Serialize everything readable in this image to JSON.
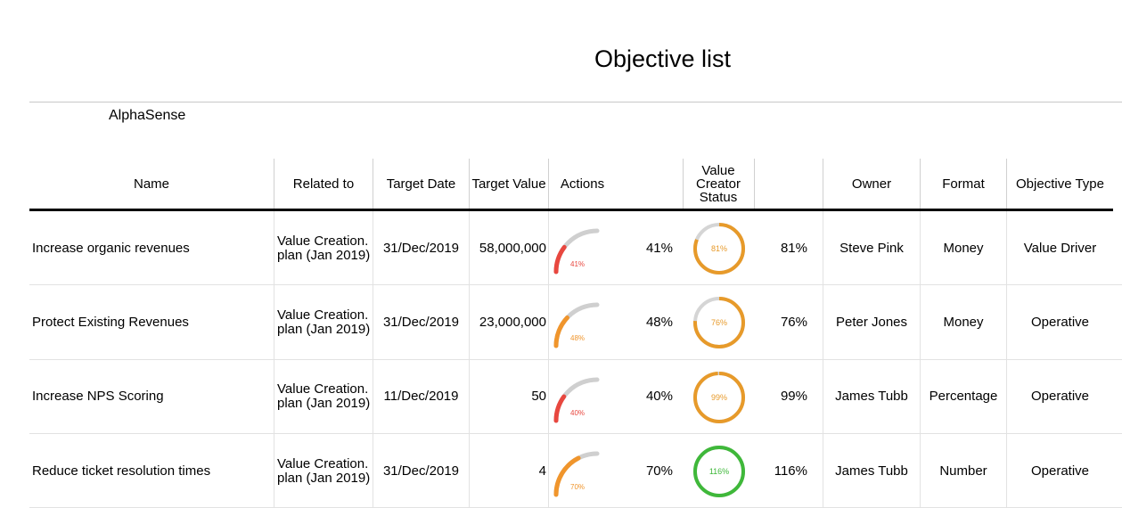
{
  "title": "Objective list",
  "company": "AlphaSense",
  "headers": {
    "name": "Name",
    "related_to": "Related to",
    "target_date": "Target Date",
    "target_value": "Target Value",
    "actions": "Actions",
    "value_creator_status": "Value Creator Status",
    "owner": "Owner",
    "format": "Format",
    "objective_type": "Objective Type"
  },
  "rows": [
    {
      "name": "Increase organic revenues",
      "related_to": "Value Creation. plan (Jan 2019)",
      "target_date": "31/Dec/2019",
      "target_value": "58,000,000",
      "actions_fraction": 0.41,
      "actions_gauge_label": "41%",
      "actions_pct": "41%",
      "actions_color": "#e8473f",
      "status_fraction": 0.81,
      "status_ring_label": "81%",
      "status_pct": "81%",
      "status_color": "#e79a2a",
      "owner": "Steve Pink",
      "format": "Money",
      "objective_type": "Value Driver"
    },
    {
      "name": "Protect Existing Revenues",
      "related_to": "Value Creation. plan (Jan 2019)",
      "target_date": "31/Dec/2019",
      "target_value": "23,000,000",
      "actions_fraction": 0.48,
      "actions_gauge_label": "48%",
      "actions_pct": "48%",
      "actions_color": "#f0952c",
      "status_fraction": 0.76,
      "status_ring_label": "76%",
      "status_pct": "76%",
      "status_color": "#e79a2a",
      "owner": "Peter Jones",
      "format": "Money",
      "objective_type": "Operative"
    },
    {
      "name": "Increase NPS Scoring",
      "related_to": "Value Creation. plan (Jan 2019)",
      "target_date": "11/Dec/2019",
      "target_value": "50",
      "actions_fraction": 0.4,
      "actions_gauge_label": "40%",
      "actions_pct": "40%",
      "actions_color": "#e8473f",
      "status_fraction": 0.99,
      "status_ring_label": "99%",
      "status_pct": "99%",
      "status_color": "#e79a2a",
      "owner": "James Tubb",
      "format": "Percentage",
      "objective_type": "Operative"
    },
    {
      "name": "Reduce ticket resolution times",
      "related_to": "Value Creation. plan (Jan 2019)",
      "target_date": "31/Dec/2019",
      "target_value": "4",
      "actions_fraction": 0.7,
      "actions_gauge_label": "70%",
      "actions_pct": "70%",
      "actions_color": "#f0952c",
      "status_fraction": 1.0,
      "status_ring_label": "116%",
      "status_pct": "116%",
      "status_color": "#3fb83a",
      "owner": "James Tubb",
      "format": "Number",
      "objective_type": "Operative"
    }
  ]
}
